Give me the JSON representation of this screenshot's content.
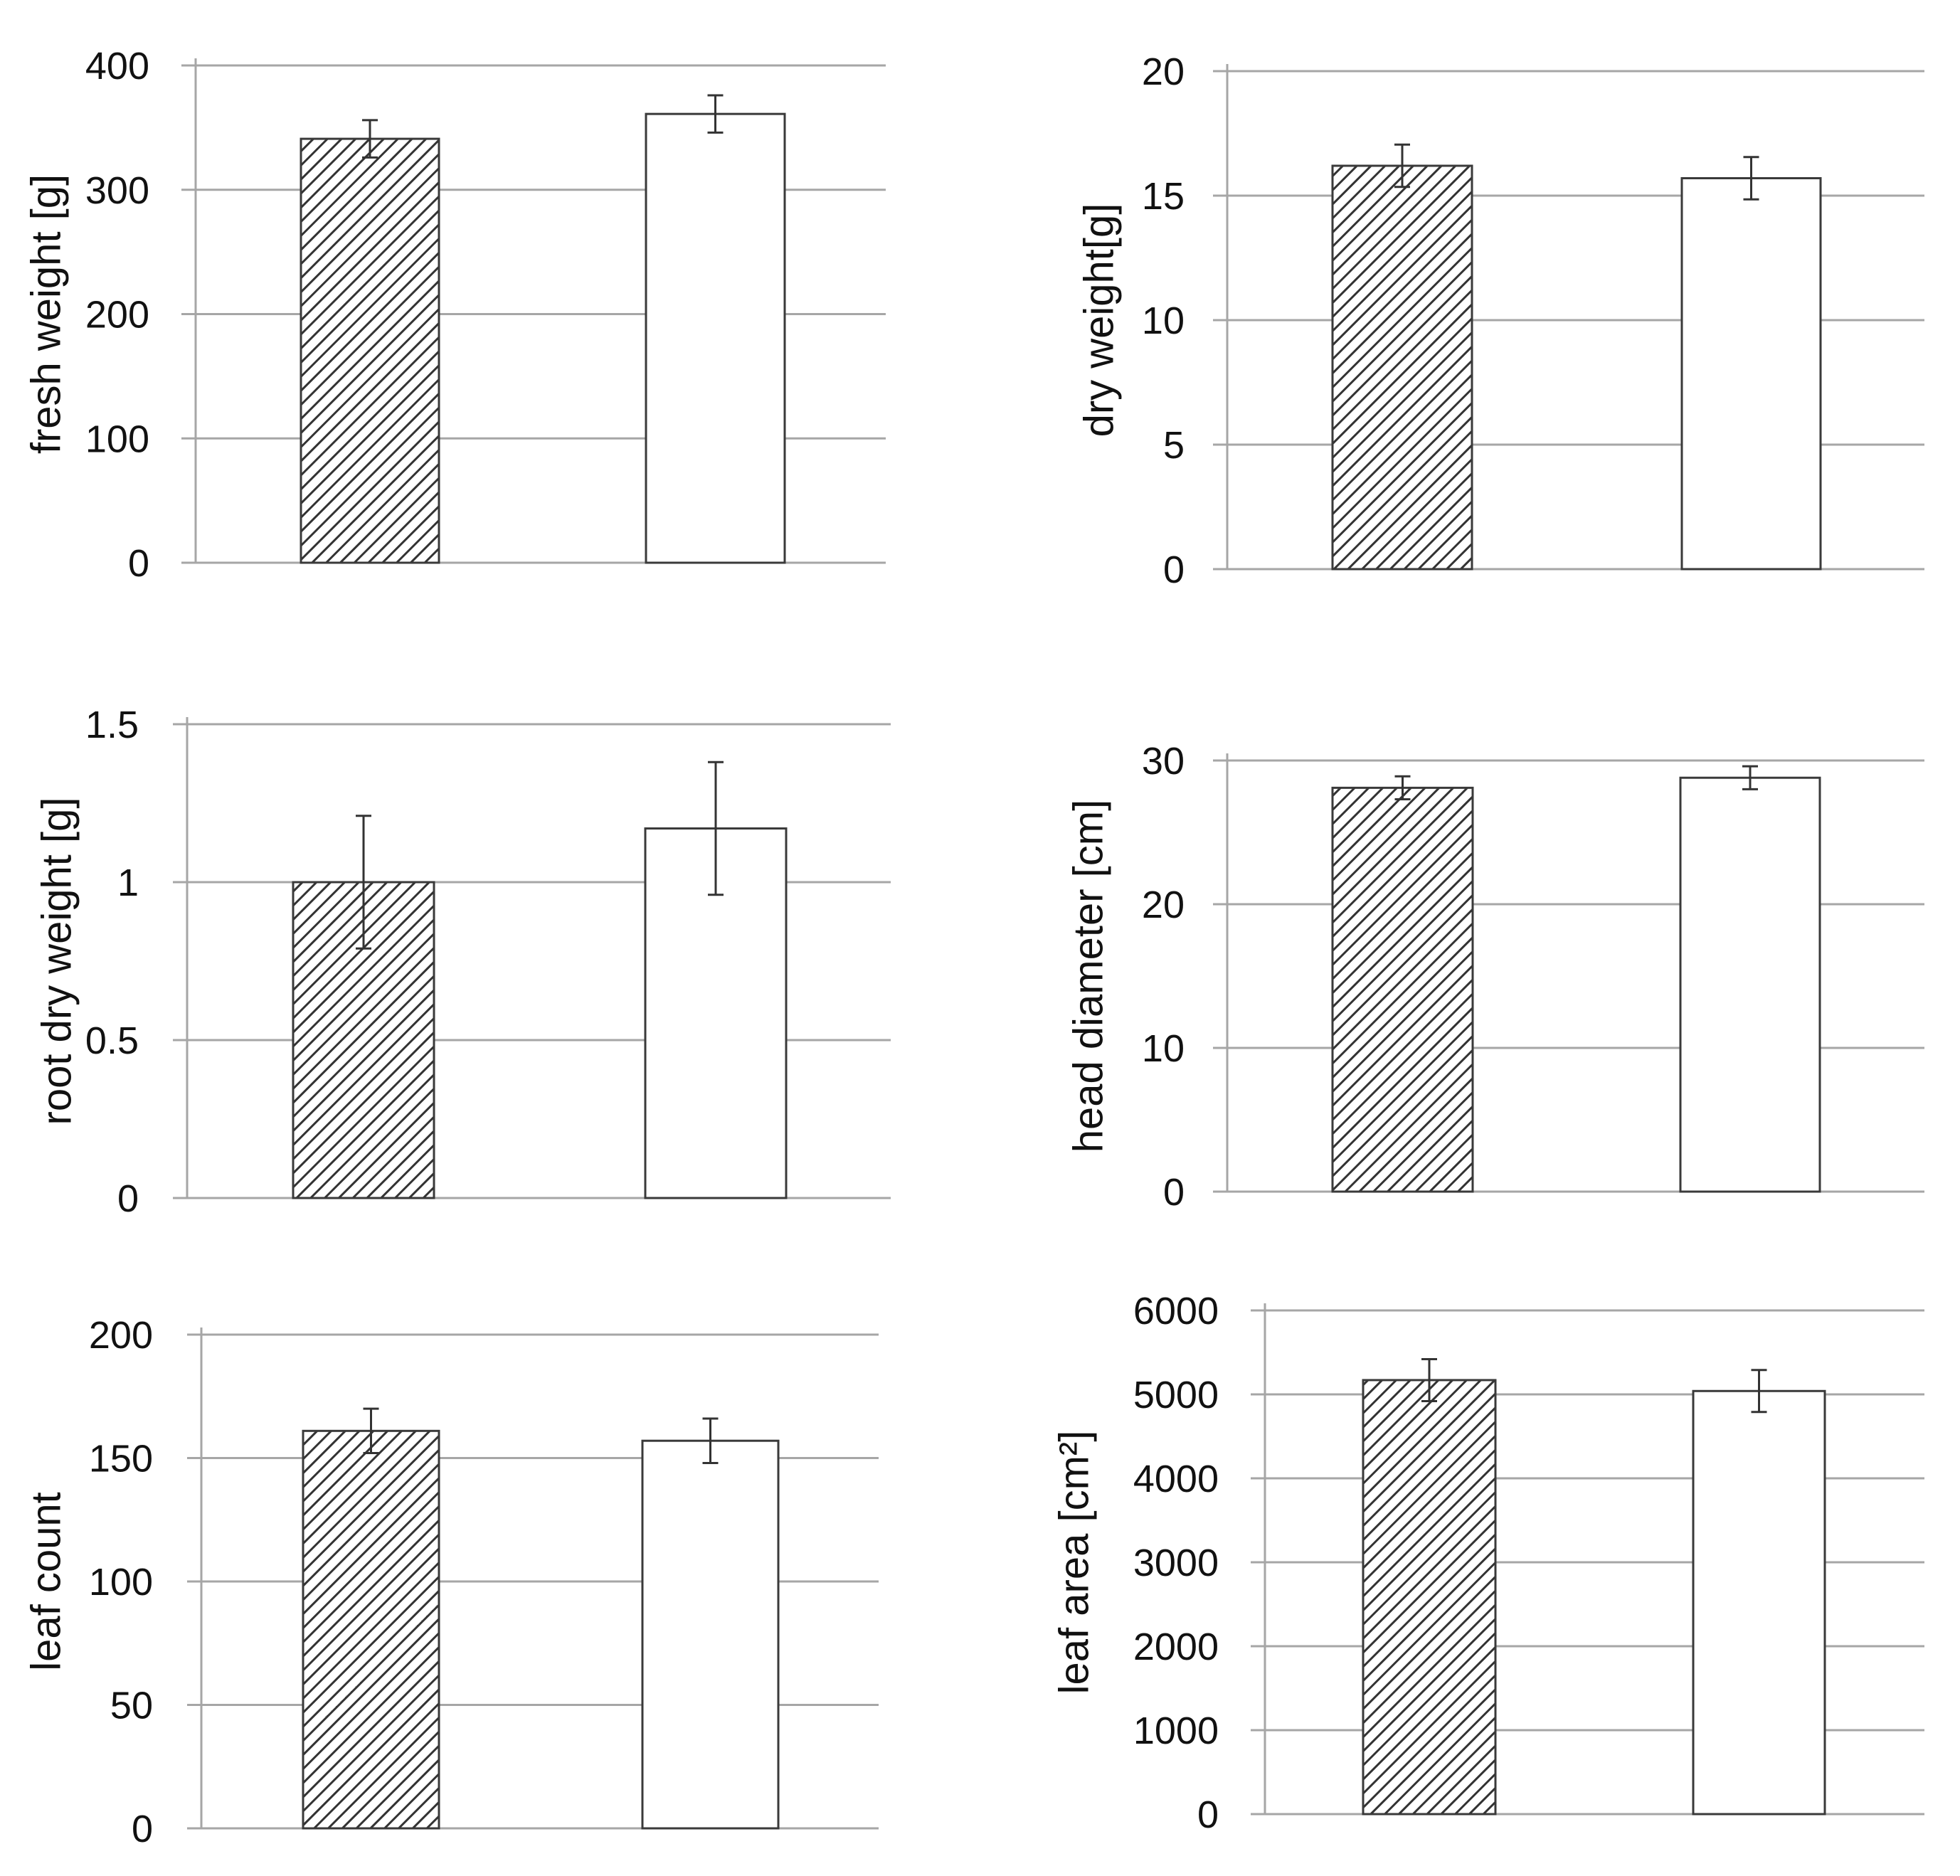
{
  "chart_data": [
    {
      "type": "bar",
      "ylabel": "fresh weight [g]",
      "ylim": [
        0,
        400
      ],
      "yticks": [
        "0",
        "100",
        "200",
        "300",
        "400"
      ],
      "series": [
        {
          "name": "hatched",
          "fill": "hatched",
          "value": 341,
          "error": 15
        },
        {
          "name": "white",
          "fill": "white",
          "value": 361,
          "error": 15
        }
      ]
    },
    {
      "type": "bar",
      "ylabel": "dry weight[g]",
      "ylim": [
        0,
        20
      ],
      "yticks": [
        "0",
        "5",
        "10",
        "15",
        "20"
      ],
      "series": [
        {
          "name": "hatched",
          "fill": "hatched",
          "value": 16.2,
          "error": 0.85
        },
        {
          "name": "white",
          "fill": "white",
          "value": 15.7,
          "error": 0.85
        }
      ]
    },
    {
      "type": "bar",
      "ylabel": "root dry weight [g]",
      "ylim": [
        0,
        1.5
      ],
      "yticks": [
        "0",
        "0.5",
        "1",
        "1.5"
      ],
      "series": [
        {
          "name": "hatched",
          "fill": "hatched",
          "value": 1.0,
          "error": 0.21
        },
        {
          "name": "white",
          "fill": "white",
          "value": 1.17,
          "error": 0.21
        }
      ]
    },
    {
      "type": "bar",
      "ylabel": "head diameter [cm]",
      "ylim": [
        0,
        30
      ],
      "yticks": [
        "0",
        "10",
        "20",
        "30"
      ],
      "series": [
        {
          "name": "hatched",
          "fill": "hatched",
          "value": 28.1,
          "error": 0.8
        },
        {
          "name": "white",
          "fill": "white",
          "value": 28.8,
          "error": 0.8
        }
      ]
    },
    {
      "type": "bar",
      "ylabel": "leaf count",
      "ylim": [
        0,
        200
      ],
      "yticks": [
        "0",
        "50",
        "100",
        "150",
        "200"
      ],
      "series": [
        {
          "name": "hatched",
          "fill": "hatched",
          "value": 161,
          "error": 9
        },
        {
          "name": "white",
          "fill": "white",
          "value": 157,
          "error": 9
        }
      ]
    },
    {
      "type": "bar",
      "ylabel": "leaf area [cm²]",
      "ylim": [
        0,
        6000
      ],
      "yticks": [
        "0",
        "1000",
        "2000",
        "3000",
        "4000",
        "5000",
        "6000"
      ],
      "series": [
        {
          "name": "hatched",
          "fill": "hatched",
          "value": 5170,
          "error": 250
        },
        {
          "name": "white",
          "fill": "white",
          "value": 5040,
          "error": 250
        }
      ]
    }
  ],
  "colors": {
    "gridline": "#a6a6a6",
    "bar_outline": "#3a3a3a",
    "hatch": "#333333",
    "white_bar": "#ffffff"
  }
}
